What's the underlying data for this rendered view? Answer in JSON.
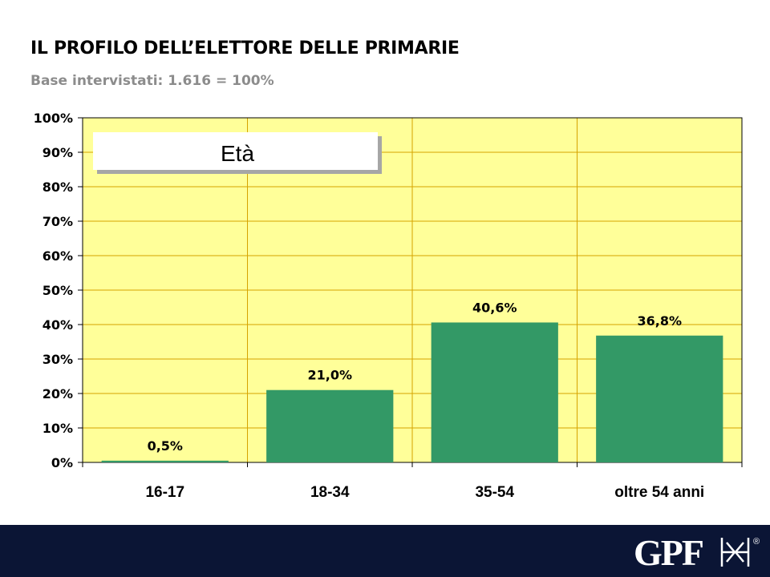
{
  "header": {
    "title": "IL PROFILO DELL’ELETTORE DELLE PRIMARIE",
    "subtitle": "Base intervistati: 1.616 = 100%"
  },
  "chart_data": {
    "type": "bar",
    "title": "Età",
    "categories": [
      "16-17",
      "18-34",
      "35-54",
      "oltre 54 anni"
    ],
    "values": [
      0.5,
      21.0,
      40.6,
      36.8
    ],
    "value_labels": [
      "0,5%",
      "21,0%",
      "40,6%",
      "36,8%"
    ],
    "yticks": [
      "0%",
      "10%",
      "20%",
      "30%",
      "40%",
      "50%",
      "60%",
      "70%",
      "80%",
      "90%",
      "100%"
    ],
    "ylim": [
      0,
      100
    ],
    "grid": true,
    "colors": {
      "bar": "#339966",
      "plot_bg": "#ffff99",
      "grid": "#d6a300"
    }
  },
  "logo": {
    "text": "GPF",
    "mark": "®"
  }
}
